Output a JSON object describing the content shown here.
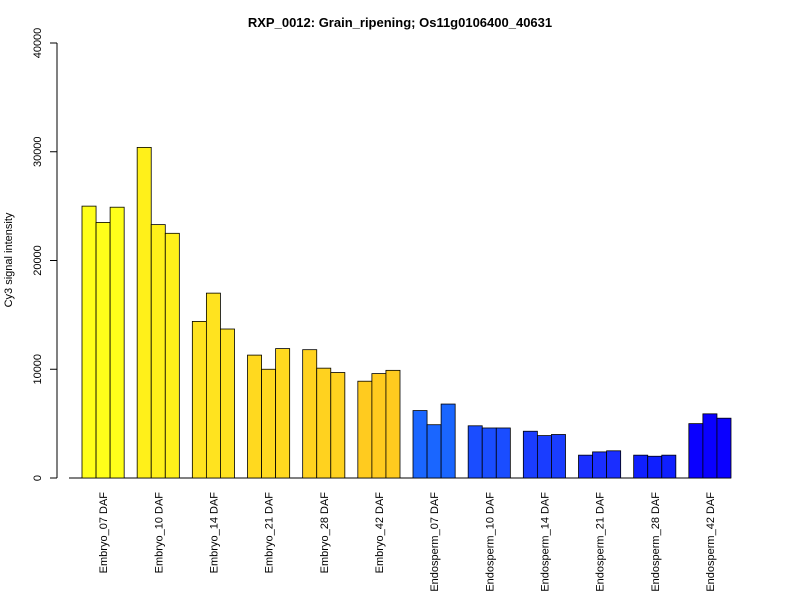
{
  "chart_data": {
    "type": "bar",
    "title": "RXP_0012: Grain_ripening; Os11g0106400_40631",
    "xlabel": "",
    "ylabel": "Cy3 signal intensity",
    "ylim": [
      0,
      40000
    ],
    "yticks": [
      0,
      10000,
      20000,
      30000,
      40000
    ],
    "ytick_labels": [
      "0",
      "10000",
      "20000",
      "30000",
      "40000"
    ],
    "grid": false,
    "legend": "none",
    "replicates_per_category": 3,
    "categories": [
      "Embryo_07 DAF",
      "Embryo_10 DAF",
      "Embryo_14 DAF",
      "Embryo_21 DAF",
      "Embryo_28 DAF",
      "Embryo_42 DAF",
      "Endosperm_07 DAF",
      "Endosperm_10 DAF",
      "Endosperm_14 DAF",
      "Endosperm_21 DAF",
      "Endosperm_28 DAF",
      "Endosperm_42 DAF"
    ],
    "category_colors": [
      "#FFFF1A",
      "#FFF01A",
      "#FFE31F",
      "#FFD91F",
      "#FFD21F",
      "#FFCB1F",
      "#1A66FF",
      "#1A4DFF",
      "#1A3DFF",
      "#1A2EFF",
      "#0F1FFF",
      "#0A00FF"
    ],
    "values": [
      [
        25000,
        23500,
        24900
      ],
      [
        30400,
        23300,
        22500
      ],
      [
        14400,
        17000,
        13700
      ],
      [
        11300,
        10000,
        11900
      ],
      [
        11800,
        10100,
        9700
      ],
      [
        8900,
        9600,
        9900
      ],
      [
        6200,
        4900,
        6800
      ],
      [
        4800,
        4600,
        4600
      ],
      [
        4300,
        3900,
        4000
      ],
      [
        2100,
        2400,
        2500
      ],
      [
        2100,
        2000,
        2100
      ],
      [
        5000,
        5900,
        5500
      ]
    ]
  }
}
